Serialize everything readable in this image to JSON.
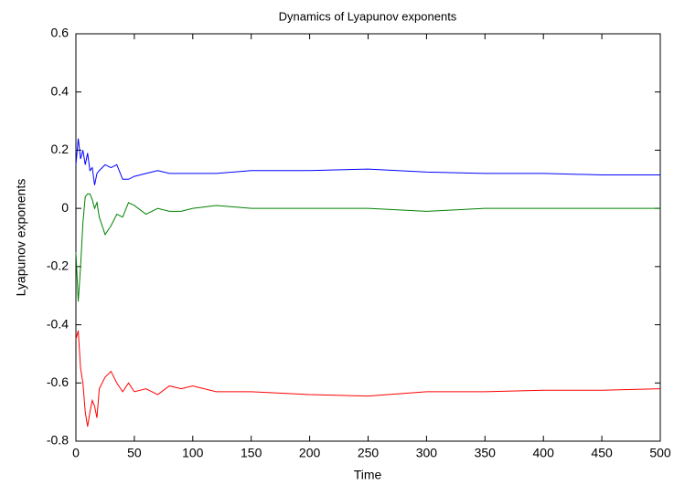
{
  "chart_data": {
    "type": "line",
    "title": "Dynamics of Lyapunov exponents",
    "xlabel": "Time",
    "ylabel": "Lyapunov exponents",
    "x": [
      0,
      2,
      4,
      6,
      8,
      10,
      12,
      14,
      16,
      18,
      20,
      25,
      30,
      35,
      40,
      45,
      50,
      60,
      70,
      80,
      90,
      100,
      120,
      150,
      200,
      250,
      300,
      350,
      400,
      450,
      500
    ],
    "series": [
      {
        "color": "#0000ff",
        "values": [
          0.15,
          0.24,
          0.17,
          0.2,
          0.15,
          0.19,
          0.13,
          0.14,
          0.08,
          0.12,
          0.13,
          0.15,
          0.14,
          0.15,
          0.1,
          0.1,
          0.11,
          0.12,
          0.13,
          0.12,
          0.12,
          0.12,
          0.12,
          0.13,
          0.13,
          0.135,
          0.125,
          0.12,
          0.12,
          0.115,
          0.115
        ]
      },
      {
        "color": "#008000",
        "values": [
          -0.15,
          -0.32,
          -0.2,
          -0.05,
          0.04,
          0.05,
          0.05,
          0.03,
          0.0,
          0.02,
          -0.03,
          -0.09,
          -0.06,
          -0.02,
          -0.03,
          0.02,
          0.01,
          -0.02,
          0.0,
          -0.01,
          -0.01,
          0.0,
          0.01,
          0.0,
          0.0,
          0.0,
          -0.01,
          0.0,
          0.0,
          0.0,
          0.0
        ]
      },
      {
        "color": "#ff0000",
        "values": [
          -0.45,
          -0.42,
          -0.55,
          -0.6,
          -0.7,
          -0.75,
          -0.7,
          -0.66,
          -0.68,
          -0.72,
          -0.62,
          -0.58,
          -0.56,
          -0.6,
          -0.63,
          -0.6,
          -0.63,
          -0.62,
          -0.64,
          -0.61,
          -0.62,
          -0.61,
          -0.63,
          -0.63,
          -0.64,
          -0.645,
          -0.63,
          -0.63,
          -0.625,
          -0.625,
          -0.62
        ]
      }
    ],
    "xlim": [
      0,
      500
    ],
    "xticks": [
      0,
      50,
      100,
      150,
      200,
      250,
      300,
      350,
      400,
      450,
      500
    ],
    "ylim": [
      -0.8,
      0.6
    ],
    "yticks": [
      -0.8,
      -0.6,
      -0.4,
      -0.2,
      0,
      0.2,
      0.4,
      0.6
    ],
    "grid": false
  }
}
